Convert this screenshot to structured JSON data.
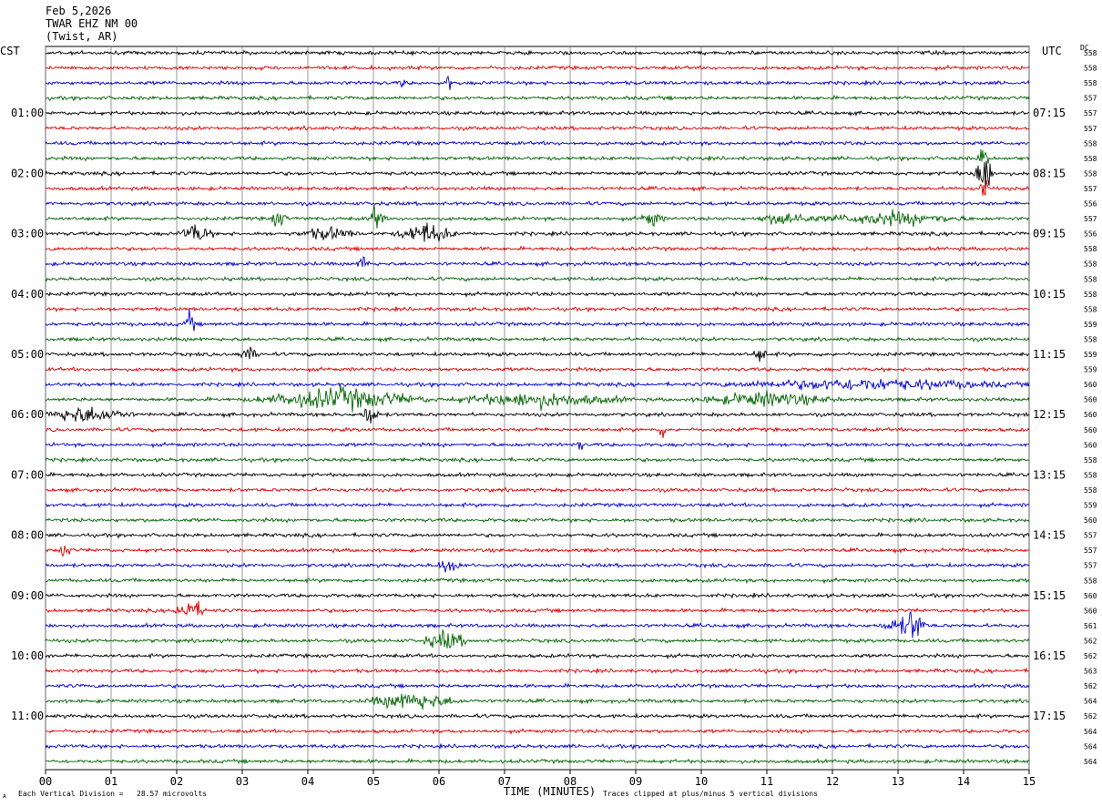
{
  "header": {
    "date": "Feb 5,2026",
    "station": "TWAR EHZ NM 00",
    "location": "(Twist, AR)"
  },
  "labels": {
    "left_tz": "CST",
    "right_tz": "UTC",
    "dc": "DC",
    "xlabel": "TIME (MINUTES)",
    "scale_note": "Each Vertical Division =   28.57 microvolts",
    "clip_note": "Traces clipped at plus/minus 5 vertical divisions",
    "corner_mark": "A"
  },
  "colors": {
    "trace_cycle": [
      "#000000",
      "#e00000",
      "#0000d0",
      "#006400"
    ],
    "grid": "#808080",
    "frame": "#000000"
  },
  "chart_data": {
    "type": "line",
    "title": "TWAR EHZ NM 00",
    "xlabel": "TIME (MINUTES)",
    "ylabel": "",
    "xlim": [
      0,
      15
    ],
    "x_ticks": [
      "00",
      "01",
      "02",
      "03",
      "04",
      "05",
      "06",
      "07",
      "08",
      "09",
      "10",
      "11",
      "12",
      "13",
      "14",
      "15"
    ],
    "left_times": [
      {
        "row": 4,
        "label": "01:00"
      },
      {
        "row": 8,
        "label": "02:00"
      },
      {
        "row": 12,
        "label": "03:00"
      },
      {
        "row": 16,
        "label": "04:00"
      },
      {
        "row": 20,
        "label": "05:00"
      },
      {
        "row": 24,
        "label": "06:00"
      },
      {
        "row": 28,
        "label": "07:00"
      },
      {
        "row": 32,
        "label": "08:00"
      },
      {
        "row": 36,
        "label": "09:00"
      },
      {
        "row": 40,
        "label": "10:00"
      },
      {
        "row": 44,
        "label": "11:00"
      }
    ],
    "right_times": [
      {
        "row": 4,
        "label": "07:15"
      },
      {
        "row": 8,
        "label": "08:15"
      },
      {
        "row": 12,
        "label": "09:15"
      },
      {
        "row": 16,
        "label": "10:15"
      },
      {
        "row": 20,
        "label": "11:15"
      },
      {
        "row": 24,
        "label": "12:15"
      },
      {
        "row": 28,
        "label": "13:15"
      },
      {
        "row": 32,
        "label": "14:15"
      },
      {
        "row": 36,
        "label": "15:15"
      },
      {
        "row": 40,
        "label": "16:15"
      },
      {
        "row": 44,
        "label": "17:15"
      }
    ],
    "dc_offsets": [
      558,
      558,
      558,
      557,
      557,
      557,
      558,
      558,
      558,
      557,
      556,
      557,
      556,
      558,
      558,
      558,
      558,
      558,
      559,
      558,
      559,
      559,
      560,
      560,
      560,
      560,
      560,
      558,
      558,
      558,
      559,
      560,
      557,
      557,
      557,
      558,
      560,
      560,
      561,
      562,
      562,
      563,
      562,
      564,
      562,
      564,
      564,
      564
    ],
    "row_count": 48,
    "events": [
      {
        "row": 2,
        "minute": 6.15,
        "amp": 1.2,
        "dur": 0.05
      },
      {
        "row": 2,
        "minute": 5.45,
        "amp": 1.0,
        "dur": 0.04
      },
      {
        "row": 8,
        "minute": 14.3,
        "amp": 4.0,
        "dur": 0.15
      },
      {
        "row": 9,
        "minute": 14.3,
        "amp": 2.0,
        "dur": 0.1
      },
      {
        "row": 7,
        "minute": 14.3,
        "amp": 1.5,
        "dur": 0.1
      },
      {
        "row": 11,
        "minute": 3.55,
        "amp": 1.0,
        "dur": 0.15
      },
      {
        "row": 11,
        "minute": 5.05,
        "amp": 1.5,
        "dur": 0.15
      },
      {
        "row": 11,
        "minute": 9.25,
        "amp": 1.0,
        "dur": 0.2
      },
      {
        "row": 11,
        "minute": 11.3,
        "amp": 0.8,
        "dur": 0.5
      },
      {
        "row": 11,
        "minute": 12.9,
        "amp": 0.7,
        "dur": 1.3
      },
      {
        "row": 12,
        "minute": 2.3,
        "amp": 1.1,
        "dur": 0.3
      },
      {
        "row": 12,
        "minute": 4.3,
        "amp": 0.7,
        "dur": 0.5
      },
      {
        "row": 12,
        "minute": 5.8,
        "amp": 1.2,
        "dur": 0.5
      },
      {
        "row": 14,
        "minute": 4.85,
        "amp": 1.3,
        "dur": 0.1
      },
      {
        "row": 18,
        "minute": 2.2,
        "amp": 1.4,
        "dur": 0.1
      },
      {
        "row": 20,
        "minute": 3.1,
        "amp": 0.7,
        "dur": 0.2
      },
      {
        "row": 20,
        "minute": 10.9,
        "amp": 0.8,
        "dur": 0.15
      },
      {
        "row": 22,
        "minute": 12.5,
        "amp": 0.6,
        "dur": 2.6
      },
      {
        "row": 23,
        "minute": 4.5,
        "amp": 1.2,
        "dur": 1.5
      },
      {
        "row": 23,
        "minute": 7.5,
        "amp": 0.8,
        "dur": 1.5
      },
      {
        "row": 23,
        "minute": 11.0,
        "amp": 0.8,
        "dur": 1.2
      },
      {
        "row": 24,
        "minute": 0.6,
        "amp": 0.9,
        "dur": 0.8
      },
      {
        "row": 24,
        "minute": 4.95,
        "amp": 1.4,
        "dur": 0.15
      },
      {
        "row": 26,
        "minute": 8.15,
        "amp": 1.0,
        "dur": 0.05
      },
      {
        "row": 25,
        "minute": 9.4,
        "amp": 1.5,
        "dur": 0.05
      },
      {
        "row": 33,
        "minute": 0.3,
        "amp": 1.2,
        "dur": 0.1
      },
      {
        "row": 34,
        "minute": 6.15,
        "amp": 1.0,
        "dur": 0.2
      },
      {
        "row": 37,
        "minute": 2.2,
        "amp": 1.2,
        "dur": 0.3
      },
      {
        "row": 38,
        "minute": 13.25,
        "amp": 2.0,
        "dur": 0.2
      },
      {
        "row": 38,
        "minute": 13.0,
        "amp": 0.8,
        "dur": 0.3
      },
      {
        "row": 39,
        "minute": 6.1,
        "amp": 1.1,
        "dur": 0.4
      },
      {
        "row": 43,
        "minute": 5.6,
        "amp": 1.0,
        "dur": 0.8
      }
    ]
  }
}
